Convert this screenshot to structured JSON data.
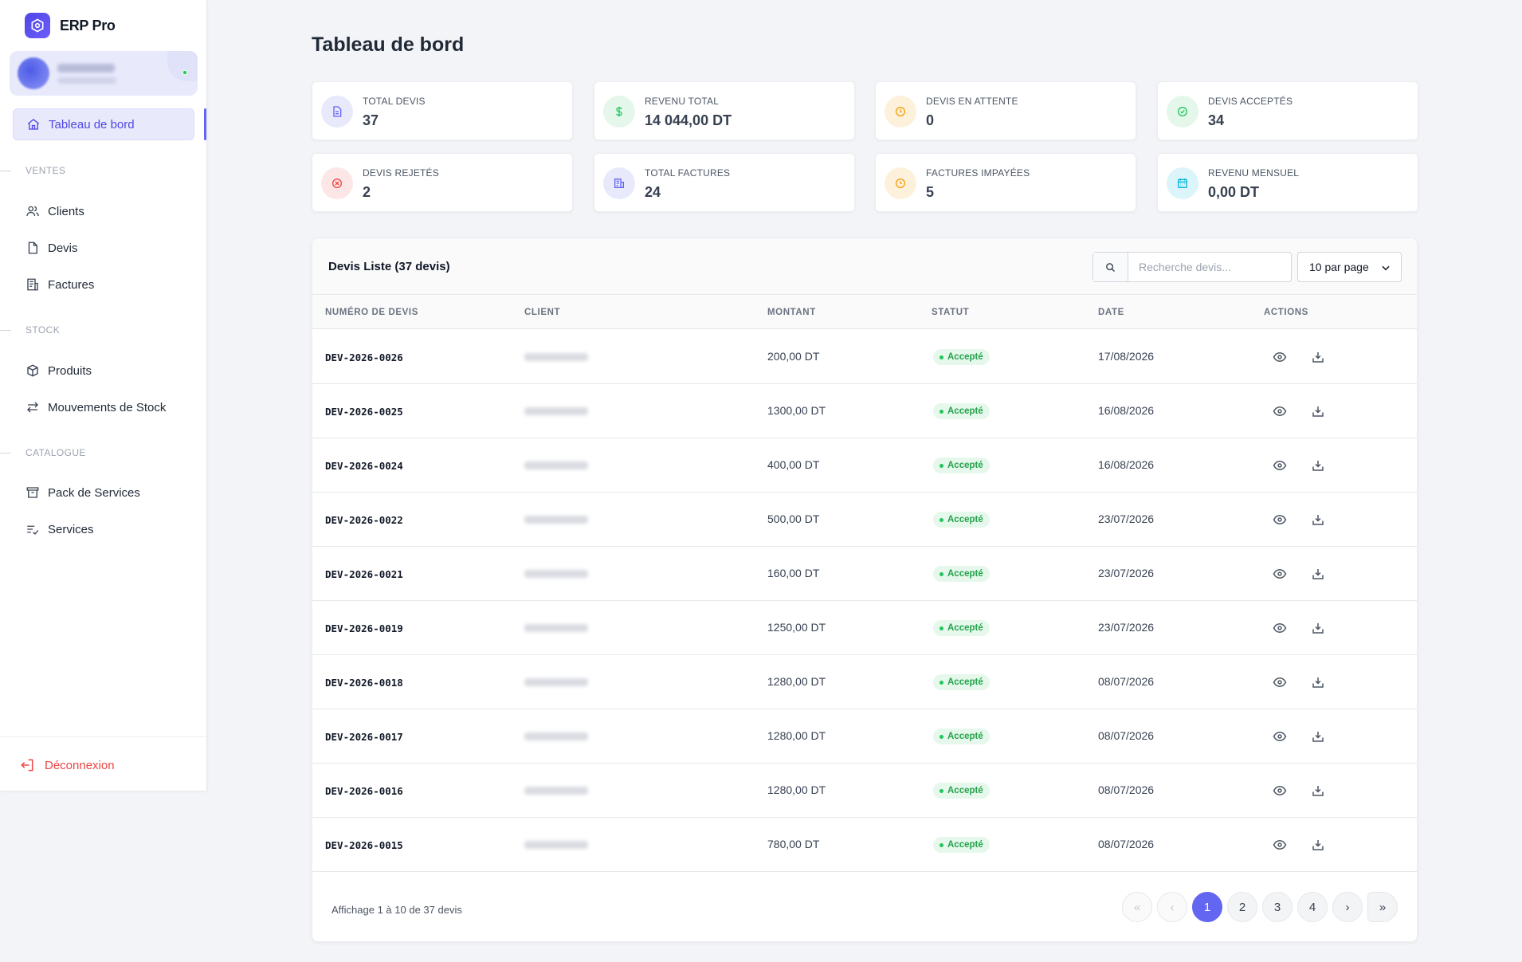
{
  "brand": {
    "name": "ERP Pro"
  },
  "user": {
    "status_color": "#22c55e"
  },
  "nav": {
    "dashboard": "Tableau de bord",
    "sections": {
      "ventes": "VENTES",
      "stock": "STOCK",
      "catalogue": "CATALOGUE"
    },
    "clients": "Clients",
    "devis": "Devis",
    "factures": "Factures",
    "produits": "Produits",
    "mouvements": "Mouvements de Stock",
    "pack": "Pack de Services",
    "services": "Services",
    "logout": "Déconnexion"
  },
  "page": {
    "title": "Tableau de bord"
  },
  "stats": [
    {
      "label": "TOTAL DEVIS",
      "value": "37",
      "icon": "document-icon",
      "color": "#6366f1"
    },
    {
      "label": "REVENU TOTAL",
      "value": "14 044,00 DT",
      "icon": "dollar-icon",
      "color": "#22c55e"
    },
    {
      "label": "DEVIS EN ATTENTE",
      "value": "0",
      "icon": "clock-icon",
      "color": "#f59e0b"
    },
    {
      "label": "DEVIS ACCEPTÉS",
      "value": "34",
      "icon": "check-circle-icon",
      "color": "#22c55e"
    },
    {
      "label": "DEVIS REJETÉS",
      "value": "2",
      "icon": "x-circle-icon",
      "color": "#ef4444"
    },
    {
      "label": "TOTAL FACTURES",
      "value": "24",
      "icon": "invoice-icon",
      "color": "#6366f1"
    },
    {
      "label": "FACTURES IMPAYÉES",
      "value": "5",
      "icon": "clock-icon",
      "color": "#f59e0b"
    },
    {
      "label": "REVENU MENSUEL",
      "value": "0,00 DT",
      "icon": "calendar-icon",
      "color": "#06b6d4"
    }
  ],
  "table": {
    "title": "Devis Liste (37 devis)",
    "search_placeholder": "Recherche devis...",
    "per_page": "10 par page",
    "columns": [
      "NUMÉRO DE DEVIS",
      "CLIENT",
      "MONTANT",
      "STATUT",
      "DATE",
      "ACTIONS"
    ],
    "rows": [
      {
        "num": "DEV-2026-0026",
        "montant": "200,00 DT",
        "statut": "Accepté",
        "date": "17/08/2026"
      },
      {
        "num": "DEV-2026-0025",
        "montant": "1300,00 DT",
        "statut": "Accepté",
        "date": "16/08/2026"
      },
      {
        "num": "DEV-2026-0024",
        "montant": "400,00 DT",
        "statut": "Accepté",
        "date": "16/08/2026"
      },
      {
        "num": "DEV-2026-0022",
        "montant": "500,00 DT",
        "statut": "Accepté",
        "date": "23/07/2026"
      },
      {
        "num": "DEV-2026-0021",
        "montant": "160,00 DT",
        "statut": "Accepté",
        "date": "23/07/2026"
      },
      {
        "num": "DEV-2026-0019",
        "montant": "1250,00 DT",
        "statut": "Accepté",
        "date": "23/07/2026"
      },
      {
        "num": "DEV-2026-0018",
        "montant": "1280,00 DT",
        "statut": "Accepté",
        "date": "08/07/2026"
      },
      {
        "num": "DEV-2026-0017",
        "montant": "1280,00 DT",
        "statut": "Accepté",
        "date": "08/07/2026"
      },
      {
        "num": "DEV-2026-0016",
        "montant": "1280,00 DT",
        "statut": "Accepté",
        "date": "08/07/2026"
      },
      {
        "num": "DEV-2026-0015",
        "montant": "780,00 DT",
        "statut": "Accepté",
        "date": "08/07/2026"
      }
    ],
    "footer": "Affichage 1 à 10 de 37 devis",
    "pagination": {
      "first": "«",
      "prev": "‹",
      "pages": [
        "1",
        "2",
        "3",
        "4"
      ],
      "current": "1",
      "next": "›",
      "last": "»"
    }
  }
}
